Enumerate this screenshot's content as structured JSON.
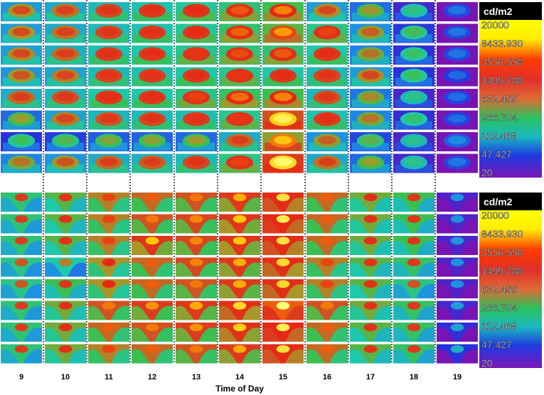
{
  "chart_data": {
    "type": "heatmap",
    "description_free": true,
    "xlabel": "Time of Day",
    "x_ticks": [
      "9",
      "10",
      "11",
      "12",
      "13",
      "14",
      "15",
      "16",
      "17",
      "18",
      "19"
    ],
    "legend": {
      "unit": "cd/m2",
      "scale_values": [
        "20000",
        "8433.930",
        "3556.558",
        "1499.788",
        "632.455",
        "266.704",
        "112.468",
        "47.427",
        "20"
      ],
      "scale": "log"
    },
    "panels": [
      {
        "rows": 8,
        "cells": [
          [
            0.46,
            0.49,
            0.53,
            0.55,
            0.58,
            0.62,
            0.66,
            0.47,
            0.39,
            0.26,
            0.05
          ],
          [
            0.46,
            0.49,
            0.53,
            0.55,
            0.58,
            0.63,
            0.68,
            0.6,
            0.44,
            0.31,
            0.05
          ],
          [
            0.47,
            0.5,
            0.54,
            0.56,
            0.59,
            0.61,
            0.62,
            0.56,
            0.42,
            0.29,
            0.05
          ],
          [
            0.45,
            0.48,
            0.53,
            0.54,
            0.56,
            0.59,
            0.56,
            0.53,
            0.47,
            0.3,
            0.03
          ],
          [
            0.5,
            0.52,
            0.56,
            0.56,
            0.6,
            0.64,
            0.66,
            0.52,
            0.4,
            0.25,
            0.04
          ],
          [
            0.38,
            0.48,
            0.52,
            0.53,
            0.54,
            0.59,
            0.8,
            0.55,
            0.42,
            0.28,
            0.04
          ],
          [
            0.3,
            0.32,
            0.36,
            0.37,
            0.38,
            0.5,
            0.72,
            0.44,
            0.33,
            0.24,
            0.08
          ],
          [
            0.42,
            0.45,
            0.5,
            0.51,
            0.53,
            0.6,
            0.82,
            0.49,
            0.38,
            0.25,
            0.05
          ]
        ]
      },
      {
        "rows": 8,
        "cells": [
          [
            0.44,
            0.5,
            0.58,
            0.6,
            0.62,
            0.66,
            0.74,
            0.6,
            0.52,
            0.48,
            0.06
          ],
          [
            0.44,
            0.5,
            0.58,
            0.62,
            0.63,
            0.68,
            0.76,
            0.6,
            0.52,
            0.48,
            0.06
          ],
          [
            0.44,
            0.5,
            0.58,
            0.68,
            0.63,
            0.68,
            0.74,
            0.6,
            0.52,
            0.48,
            0.07
          ],
          [
            0.42,
            0.38,
            0.56,
            0.6,
            0.63,
            0.66,
            0.72,
            0.58,
            0.5,
            0.46,
            0.06
          ],
          [
            0.42,
            0.48,
            0.56,
            0.6,
            0.62,
            0.66,
            0.72,
            0.58,
            0.5,
            0.42,
            0.06
          ],
          [
            0.44,
            0.52,
            0.62,
            0.64,
            0.66,
            0.72,
            0.8,
            0.62,
            0.52,
            0.46,
            0.08
          ],
          [
            0.44,
            0.52,
            0.6,
            0.62,
            0.64,
            0.7,
            0.76,
            0.6,
            0.5,
            0.46,
            0.1
          ],
          [
            0.44,
            0.52,
            0.58,
            0.6,
            0.62,
            0.66,
            0.74,
            0.6,
            0.5,
            0.46,
            0.12
          ]
        ]
      }
    ]
  },
  "colors": {
    "legend_header_bg": "#000000",
    "legend_header_text": "#ffffff",
    "separator": "#333333",
    "frame_bg": "#3f8fc9"
  }
}
